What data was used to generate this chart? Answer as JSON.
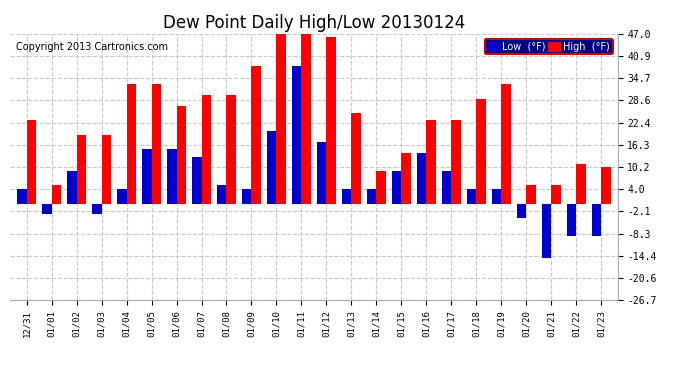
{
  "title": "Dew Point Daily High/Low 20130124",
  "copyright": "Copyright 2013 Cartronics.com",
  "ylabel_right_ticks": [
    47.0,
    40.9,
    34.7,
    28.6,
    22.4,
    16.3,
    10.2,
    4.0,
    -2.1,
    -8.3,
    -14.4,
    -20.6,
    -26.7
  ],
  "dates": [
    "12/31",
    "01/01",
    "01/02",
    "01/03",
    "01/04",
    "01/05",
    "01/06",
    "01/07",
    "01/08",
    "01/09",
    "01/10",
    "01/11",
    "01/12",
    "01/13",
    "01/14",
    "01/15",
    "01/16",
    "01/17",
    "01/18",
    "01/19",
    "01/20",
    "01/21",
    "01/22",
    "01/23"
  ],
  "high": [
    23.0,
    5.0,
    19.0,
    19.0,
    33.0,
    33.0,
    27.0,
    30.0,
    30.0,
    38.0,
    47.0,
    48.0,
    46.0,
    25.0,
    9.0,
    14.0,
    23.0,
    23.0,
    29.0,
    33.0,
    5.0,
    5.0,
    11.0,
    10.0
  ],
  "low": [
    4.0,
    -3.0,
    9.0,
    -3.0,
    4.0,
    15.0,
    15.0,
    13.0,
    5.0,
    4.0,
    20.0,
    38.0,
    17.0,
    4.0,
    4.0,
    9.0,
    14.0,
    9.0,
    4.0,
    4.0,
    -4.0,
    -15.0,
    -9.0,
    -9.0
  ],
  "high_color": "#ff0000",
  "low_color": "#0000cc",
  "bg_color": "#ffffff",
  "grid_color": "#c8c8c8",
  "title_fontsize": 12,
  "copyright_fontsize": 7,
  "ylim_min": -26.7,
  "ylim_max": 47.0,
  "bar_width": 0.38
}
